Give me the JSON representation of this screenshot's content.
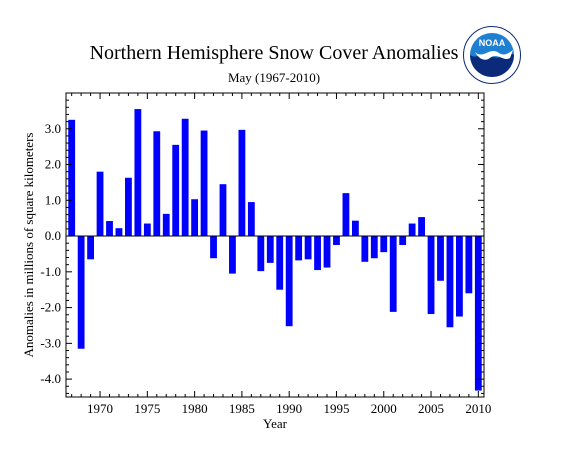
{
  "chart_data": {
    "type": "bar",
    "title": "Northern Hemisphere Snow Cover Anomalies",
    "subtitle": "May (1967-2010)",
    "xlabel": "Year",
    "ylabel": "Anomalies in millions of square kilometers",
    "xlim": [
      1966.4,
      2010.6
    ],
    "ylim": [
      -4.5,
      4.0
    ],
    "x_ticks": [
      1970,
      1975,
      1980,
      1985,
      1990,
      1995,
      2000,
      2005,
      2010
    ],
    "y_ticks": [
      3.0,
      2.0,
      1.0,
      0.0,
      -1.0,
      -2.0,
      -3.0,
      -4.0
    ],
    "y_tick_labels": [
      "3.0",
      "2.0",
      "1.0",
      "0.0",
      "-1.0",
      "-2.0",
      "-3.0",
      "-4.0"
    ],
    "bar_color": "#0000ff",
    "grid": false,
    "legend": "none",
    "x": [
      1967,
      1968,
      1969,
      1970,
      1971,
      1972,
      1973,
      1974,
      1975,
      1976,
      1977,
      1978,
      1979,
      1980,
      1981,
      1982,
      1983,
      1984,
      1985,
      1986,
      1987,
      1988,
      1989,
      1990,
      1991,
      1992,
      1993,
      1994,
      1995,
      1996,
      1997,
      1998,
      1999,
      2000,
      2001,
      2002,
      2003,
      2004,
      2005,
      2006,
      2007,
      2008,
      2009,
      2010
    ],
    "values": [
      3.25,
      -3.15,
      -0.65,
      1.8,
      0.42,
      0.22,
      1.63,
      3.55,
      0.35,
      2.93,
      0.62,
      2.55,
      3.28,
      1.03,
      2.95,
      -0.62,
      1.45,
      -1.05,
      2.97,
      0.95,
      -0.98,
      -0.75,
      -1.5,
      -2.52,
      -0.68,
      -0.65,
      -0.95,
      -0.88,
      -0.25,
      1.2,
      0.43,
      -0.72,
      -0.62,
      -0.45,
      -2.12,
      -0.25,
      0.35,
      0.53,
      -2.18,
      -1.25,
      -2.55,
      -2.25,
      -1.6,
      -4.32
    ]
  },
  "logo": {
    "text": "NOAA",
    "ring_text": "NATIONAL OCEANIC AND ATMOSPHERIC ADMINISTRATION · U.S. DEPARTMENT OF COMMERCE",
    "colors": {
      "sky": "#1f7fd0",
      "navy": "#0b2a7a",
      "white": "#ffffff"
    }
  }
}
